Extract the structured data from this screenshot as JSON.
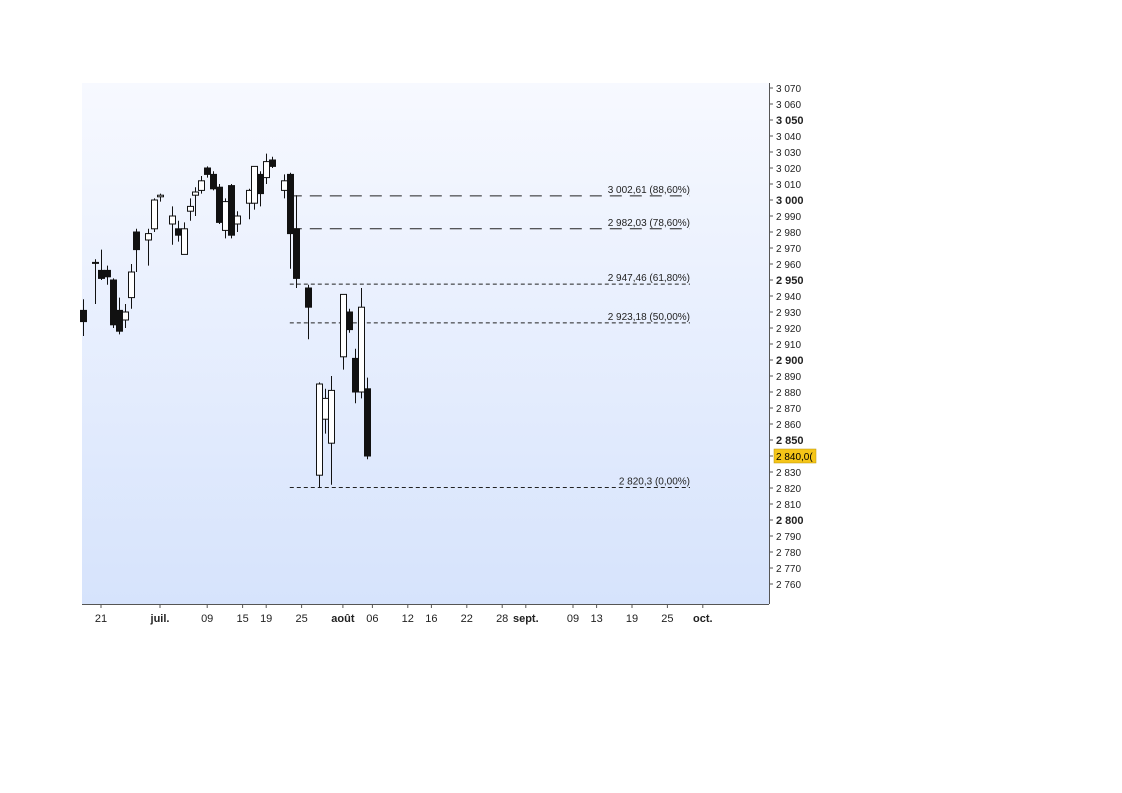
{
  "chart_data": {
    "type": "candlestick",
    "y_ticks": [
      2760,
      2770,
      2780,
      2790,
      2800,
      2810,
      2820,
      2830,
      2840,
      2850,
      2860,
      2870,
      2880,
      2890,
      2900,
      2910,
      2920,
      2930,
      2940,
      2950,
      2960,
      2970,
      2980,
      2990,
      3000,
      3010,
      3020,
      3030,
      3040,
      3050,
      3060,
      3070
    ],
    "y_tick_labels": [
      "2 760",
      "2 770",
      "2 780",
      "2 790",
      "2 800",
      "2 810",
      "2 820",
      "2 830",
      "2 840",
      "2 850",
      "2 860",
      "2 870",
      "2 880",
      "2 890",
      "2 900",
      "2 910",
      "2 920",
      "2 930",
      "2 940",
      "2 950",
      "2 960",
      "2 970",
      "2 980",
      "2 990",
      "3 000",
      "3 010",
      "3 020",
      "3 030",
      "3 040",
      "3 050",
      "3 060",
      "3 070"
    ],
    "y_major_ticks": [
      2800,
      2850,
      2900,
      2950,
      3000,
      3050
    ],
    "ylim": [
      2746,
      3073
    ],
    "x_ticks": [
      {
        "label": "21",
        "date": "2018-06-21",
        "bold": false
      },
      {
        "label": "juil.",
        "date": "2018-07-01",
        "bold": true
      },
      {
        "label": "09",
        "date": "2018-07-09",
        "bold": false
      },
      {
        "label": "15",
        "date": "2018-07-15",
        "bold": false
      },
      {
        "label": "19",
        "date": "2018-07-19",
        "bold": false
      },
      {
        "label": "25",
        "date": "2018-07-25",
        "bold": false
      },
      {
        "label": "août",
        "date": "2018-08-01",
        "bold": true
      },
      {
        "label": "06",
        "date": "2018-08-06",
        "bold": false
      },
      {
        "label": "12",
        "date": "2018-08-12",
        "bold": false
      },
      {
        "label": "16",
        "date": "2018-08-16",
        "bold": false
      },
      {
        "label": "22",
        "date": "2018-08-22",
        "bold": false
      },
      {
        "label": "28",
        "date": "2018-08-28",
        "bold": false
      },
      {
        "label": "sept.",
        "date": "2018-09-01",
        "bold": true
      },
      {
        "label": "09",
        "date": "2018-09-09",
        "bold": false
      },
      {
        "label": "13",
        "date": "2018-09-13",
        "bold": false
      },
      {
        "label": "19",
        "date": "2018-09-19",
        "bold": false
      },
      {
        "label": "25",
        "date": "2018-09-25",
        "bold": false
      },
      {
        "label": "oct.",
        "date": "2018-10-01",
        "bold": true
      }
    ],
    "xlim": [
      "2018-06-18",
      "2018-10-04"
    ],
    "candles": [
      {
        "date": "2018-06-18",
        "open": 2931,
        "high": 2938,
        "low": 2915,
        "close": 2924
      },
      {
        "date": "2018-06-20",
        "open": 2961,
        "high": 2963,
        "low": 2935,
        "close": 2961
      },
      {
        "date": "2018-06-21",
        "open": 2956,
        "high": 2969,
        "low": 2950,
        "close": 2951
      },
      {
        "date": "2018-06-22",
        "open": 2956,
        "high": 2959,
        "low": 2947,
        "close": 2952
      },
      {
        "date": "2018-06-23",
        "open": 2950,
        "high": 2951,
        "low": 2920,
        "close": 2922
      },
      {
        "date": "2018-06-24",
        "open": 2931,
        "high": 2939,
        "low": 2916,
        "close": 2918
      },
      {
        "date": "2018-06-25",
        "open": 2925,
        "high": 2935,
        "low": 2920,
        "close": 2930
      },
      {
        "date": "2018-06-26",
        "open": 2939,
        "high": 2960,
        "low": 2932,
        "close": 2955
      },
      {
        "date": "2018-06-27",
        "open": 2980,
        "high": 2982,
        "low": 2955,
        "close": 2969
      },
      {
        "date": "2018-06-29",
        "open": 2975,
        "high": 2982,
        "low": 2959,
        "close": 2979
      },
      {
        "date": "2018-06-30",
        "open": 2982,
        "high": 3001,
        "low": 2980,
        "close": 3000
      },
      {
        "date": "2018-07-01",
        "open": 3002,
        "high": 3004,
        "low": 2999,
        "close": 3003
      },
      {
        "date": "2018-07-03",
        "open": 2985,
        "high": 2996,
        "low": 2972,
        "close": 2990
      },
      {
        "date": "2018-07-04",
        "open": 2982,
        "high": 2987,
        "low": 2974,
        "close": 2978
      },
      {
        "date": "2018-07-05",
        "open": 2966,
        "high": 2986,
        "low": 2966,
        "close": 2982
      },
      {
        "date": "2018-07-06",
        "open": 2993,
        "high": 3001,
        "low": 2987,
        "close": 2996
      },
      {
        "date": "2018-07-07",
        "open": 3003,
        "high": 3008,
        "low": 2990,
        "close": 3005
      },
      {
        "date": "2018-07-08",
        "open": 3006,
        "high": 3015,
        "low": 3004,
        "close": 3012
      },
      {
        "date": "2018-07-09",
        "open": 3020,
        "high": 3021,
        "low": 3014,
        "close": 3016
      },
      {
        "date": "2018-07-10",
        "open": 3016,
        "high": 3018,
        "low": 3006,
        "close": 3007
      },
      {
        "date": "2018-07-11",
        "open": 3008,
        "high": 3010,
        "low": 2985,
        "close": 2986
      },
      {
        "date": "2018-07-12",
        "open": 2981,
        "high": 3001,
        "low": 2976,
        "close": 2999
      },
      {
        "date": "2018-07-13",
        "open": 3009,
        "high": 3010,
        "low": 2976,
        "close": 2978
      },
      {
        "date": "2018-07-14",
        "open": 2985,
        "high": 2993,
        "low": 2980,
        "close": 2990
      },
      {
        "date": "2018-07-16",
        "open": 2998,
        "high": 3007,
        "low": 2988,
        "close": 3006
      },
      {
        "date": "2018-07-17",
        "open": 2998,
        "high": 3021,
        "low": 2994,
        "close": 3021
      },
      {
        "date": "2018-07-18",
        "open": 3016,
        "high": 3018,
        "low": 2996,
        "close": 3004
      },
      {
        "date": "2018-07-19",
        "open": 3014,
        "high": 3029,
        "low": 3010,
        "close": 3024
      },
      {
        "date": "2018-07-20",
        "open": 3025,
        "high": 3027,
        "low": 3020,
        "close": 3021
      },
      {
        "date": "2018-07-22",
        "open": 3006,
        "high": 3016,
        "low": 3001,
        "close": 3012
      },
      {
        "date": "2018-07-23",
        "open": 3016,
        "high": 3017,
        "low": 2957,
        "close": 2979
      },
      {
        "date": "2018-07-24",
        "open": 2982,
        "high": 3003,
        "low": 2945,
        "close": 2951
      },
      {
        "date": "2018-07-26",
        "open": 2945,
        "high": 2947,
        "low": 2913,
        "close": 2933
      },
      {
        "date": "2018-07-28",
        "open": 2828,
        "high": 2886,
        "low": 2820,
        "close": 2885
      },
      {
        "date": "2018-07-29",
        "open": 2863,
        "high": 2882,
        "low": 2854,
        "close": 2876
      },
      {
        "date": "2018-07-30",
        "open": 2848,
        "high": 2890,
        "low": 2822,
        "close": 2881
      },
      {
        "date": "2018-08-01",
        "open": 2902,
        "high": 2941,
        "low": 2894,
        "close": 2941
      },
      {
        "date": "2018-08-02",
        "open": 2930,
        "high": 2932,
        "low": 2917,
        "close": 2919
      },
      {
        "date": "2018-08-03",
        "open": 2901,
        "high": 2907,
        "low": 2873,
        "close": 2880
      },
      {
        "date": "2018-08-04",
        "open": 2880,
        "high": 2945,
        "low": 2876,
        "close": 2933
      },
      {
        "date": "2018-08-05",
        "open": 2882,
        "high": 2889,
        "low": 2838,
        "close": 2840
      }
    ],
    "fibonacci_levels": [
      {
        "value": 3002.61,
        "label": "3 002,61 (88,60%)",
        "style": "long-dash"
      },
      {
        "value": 2982.03,
        "label": "2 982,03 (78,60%)",
        "style": "long-dash"
      },
      {
        "value": 2947.46,
        "label": "2 947,46 (61,80%)",
        "style": "short-dash"
      },
      {
        "value": 2923.18,
        "label": "2 923,18 (50,00%)",
        "style": "short-dash"
      },
      {
        "value": 2820.3,
        "label": "2 820,3 (0,00%)",
        "style": "short-dash"
      }
    ],
    "fib_start_date": "2018-07-23",
    "current_price": {
      "value": 2840,
      "label": "2 840,0("
    },
    "colors": {
      "background_top": "#f7f9ff",
      "background_bottom": "#d6e3fc",
      "bull_fill": "#ffffff",
      "bear_fill": "#111111",
      "price_tag": "#f5c518"
    },
    "grid": false
  }
}
